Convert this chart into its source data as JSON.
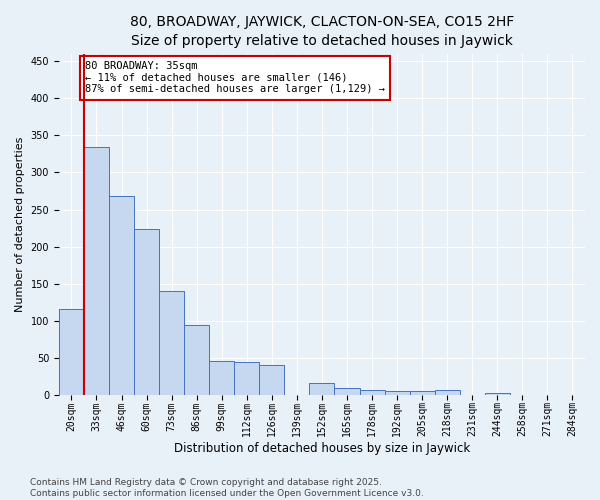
{
  "title": "80, BROADWAY, JAYWICK, CLACTON-ON-SEA, CO15 2HF",
  "subtitle": "Size of property relative to detached houses in Jaywick",
  "xlabel": "Distribution of detached houses by size in Jaywick",
  "ylabel": "Number of detached properties",
  "categories": [
    "20sqm",
    "33sqm",
    "46sqm",
    "60sqm",
    "73sqm",
    "86sqm",
    "99sqm",
    "112sqm",
    "126sqm",
    "139sqm",
    "152sqm",
    "165sqm",
    "178sqm",
    "192sqm",
    "205sqm",
    "218sqm",
    "231sqm",
    "244sqm",
    "258sqm",
    "271sqm",
    "284sqm"
  ],
  "values": [
    116,
    335,
    268,
    224,
    140,
    94,
    46,
    45,
    40,
    0,
    16,
    10,
    7,
    5,
    5,
    7,
    0,
    3,
    0,
    0,
    0
  ],
  "bar_color": "#c5d8f0",
  "bar_edge_color": "#4472c4",
  "annotation_text": "80 BROADWAY: 35sqm\n← 11% of detached houses are smaller (146)\n87% of semi-detached houses are larger (1,129) →",
  "annotation_box_color": "#ffffff",
  "annotation_box_edge_color": "#cc0000",
  "vline_color": "#cc0000",
  "ylim": [
    0,
    460
  ],
  "yticks": [
    0,
    50,
    100,
    150,
    200,
    250,
    300,
    350,
    400,
    450
  ],
  "bg_color": "#e8f0f8",
  "footer": "Contains HM Land Registry data © Crown copyright and database right 2025.\nContains public sector information licensed under the Open Government Licence v3.0.",
  "title_fontsize": 10,
  "xlabel_fontsize": 8.5,
  "ylabel_fontsize": 8,
  "tick_fontsize": 7,
  "annot_fontsize": 7.5,
  "footer_fontsize": 6.5
}
